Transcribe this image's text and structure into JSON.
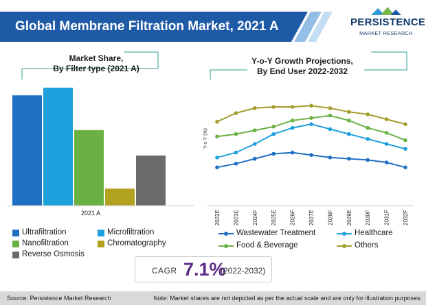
{
  "header": {
    "title": "Global Membrane Filtration Market, 2021 A",
    "title_bg": "#1f5aa6",
    "logo_name": "PERSISTENCE",
    "logo_sub": "MARKET RESEARCH"
  },
  "bar_panel": {
    "title_line1": "Market Share,",
    "title_line2": "By Filter type (2021 A)"
  },
  "line_panel": {
    "title_line1": "Y-o-Y Growth Projections,",
    "title_line2": "By End User 2022-2032"
  },
  "chart_data": [
    {
      "type": "bar",
      "categories": [
        "2021 A"
      ],
      "series": [
        {
          "name": "Ultrafiltration",
          "color": "#1f6fc4",
          "values": [
            14.3
          ]
        },
        {
          "name": "Microfiltration",
          "color": "#1ea0dc",
          "values": [
            15.3
          ]
        },
        {
          "name": "Nanofiltration",
          "color": "#6ab043",
          "values": [
            9.8
          ]
        },
        {
          "name": "Chromatography",
          "color": "#b3a21f",
          "values": [
            2.2
          ]
        },
        {
          "name": "Reverse Osmosis",
          "color": "#6b6b6b",
          "values": [
            6.5
          ]
        }
      ],
      "ylim": [
        0,
        16
      ],
      "legend_position": "bottom"
    },
    {
      "type": "line",
      "x": [
        "2022E",
        "2023E",
        "2024F",
        "2025E",
        "2026F",
        "2027E",
        "2028F",
        "2029E",
        "2030F",
        "2031F",
        "2032F"
      ],
      "ylabel": "Y-o-Y (%)",
      "ylim": [
        0,
        10
      ],
      "series": [
        {
          "name": "Wastewater Treatment",
          "color": "#1f6fc4",
          "values": [
            3.1,
            3.4,
            3.8,
            4.2,
            4.3,
            4.1,
            3.9,
            3.8,
            3.7,
            3.5,
            3.1
          ]
        },
        {
          "name": "Healthcare",
          "color": "#1ea0dc",
          "values": [
            3.9,
            4.3,
            5.0,
            5.8,
            6.3,
            6.6,
            6.2,
            5.8,
            5.4,
            5.0,
            4.6
          ]
        },
        {
          "name": "Food & Beverage",
          "color": "#6ab043",
          "values": [
            5.6,
            5.8,
            6.1,
            6.4,
            6.9,
            7.1,
            7.3,
            6.9,
            6.3,
            5.9,
            5.3
          ]
        },
        {
          "name": "Others",
          "color": "#a59b2a",
          "values": [
            6.8,
            7.5,
            7.9,
            8.0,
            8.0,
            8.1,
            7.9,
            7.6,
            7.4,
            7.0,
            6.6
          ]
        }
      ],
      "grid": false,
      "legend_position": "bottom"
    }
  ],
  "cagr": {
    "label": "CAGR",
    "value": "7.1%",
    "period": "(2022-2032)"
  },
  "footer": {
    "source": "Source: Persistence Market Research",
    "note": "Note: Market shares are not depicted as per the actual scale and are only for illustration purposes."
  }
}
